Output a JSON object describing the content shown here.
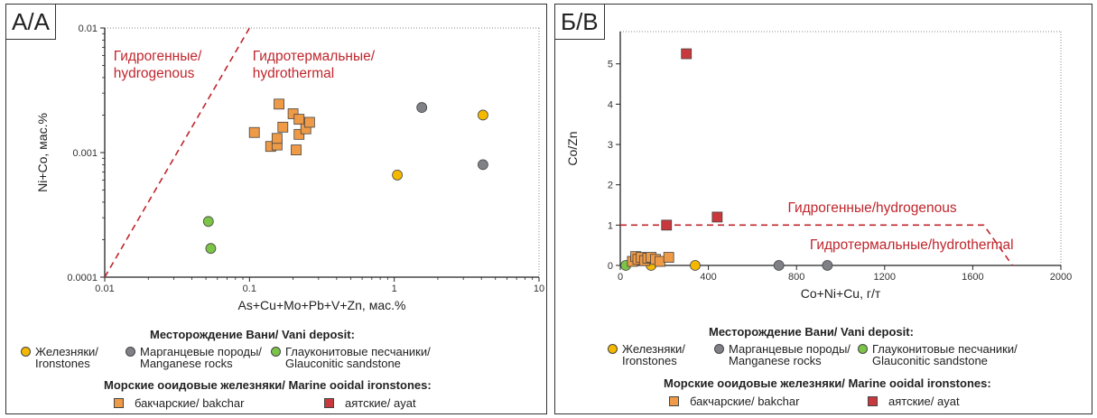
{
  "colors": {
    "ironstones": "#f5b800",
    "manganese": "#7f8186",
    "glauconitic": "#7cc448",
    "bakchar": "#ef9a47",
    "ayat": "#c8383d",
    "region": "#c0262d"
  },
  "chart_data": [
    {
      "type": "scatter",
      "panel_label": "А/А",
      "title": "",
      "xlabel": "As+Cu+Mo+Pb+V+Zn, мас.%",
      "ylabel": "Ni+Co, мас.%",
      "x_scale": "log",
      "y_scale": "log",
      "xlim": [
        0.01,
        10
      ],
      "ylim": [
        0.0001,
        0.01
      ],
      "x_ticks": [
        0.01,
        0.1,
        1,
        10
      ],
      "x_tick_labels": [
        "0.01",
        "0.1",
        "1",
        "10"
      ],
      "y_ticks": [
        0.0001,
        0.001,
        0.01
      ],
      "y_tick_labels": [
        "0.0001",
        "0.001",
        "0.01"
      ],
      "grid": false,
      "boundary": {
        "style": "dashed",
        "points": [
          [
            0.01,
            0.0001
          ],
          [
            0.1,
            0.01
          ]
        ]
      },
      "regions": [
        {
          "label1": "Гидрогенные/",
          "label2": "hydrogenous",
          "x": 0.0115,
          "y": 0.0055
        },
        {
          "label1": "Гидротермальные/",
          "label2": "hydrothermal",
          "x": 0.105,
          "y": 0.0055
        }
      ],
      "series": [
        {
          "name": "Железняки/ Ironstones",
          "key": "ironstones",
          "marker": "circle",
          "points": [
            [
              1.05,
              0.00066
            ],
            [
              4.1,
              0.002
            ]
          ]
        },
        {
          "name": "Марганцевые породы/ Manganese rocks",
          "key": "manganese",
          "marker": "circle",
          "points": [
            [
              1.55,
              0.0023
            ],
            [
              4.1,
              0.0008
            ]
          ]
        },
        {
          "name": "Глауконитовые песчаники/ Glauconitic sandstone",
          "key": "glauconitic",
          "marker": "circle",
          "points": [
            [
              0.052,
              0.00028
            ],
            [
              0.054,
              0.00017
            ]
          ]
        },
        {
          "name": "бакчарские/ bakchar",
          "key": "bakchar",
          "marker": "square",
          "points": [
            [
              0.108,
              0.00145
            ],
            [
              0.14,
              0.00112
            ],
            [
              0.155,
              0.00115
            ],
            [
              0.155,
              0.0013
            ],
            [
              0.16,
              0.00245
            ],
            [
              0.17,
              0.0016
            ],
            [
              0.2,
              0.00205
            ],
            [
              0.21,
              0.00105
            ],
            [
              0.22,
              0.00185
            ],
            [
              0.22,
              0.0014
            ],
            [
              0.245,
              0.00155
            ],
            [
              0.26,
              0.00175
            ]
          ]
        }
      ]
    },
    {
      "type": "scatter",
      "panel_label": "Б/В",
      "title": "",
      "xlabel": "Co+Ni+Cu, г/т",
      "ylabel": "Co/Zn",
      "xlim": [
        0,
        2000
      ],
      "ylim": [
        0,
        5.8
      ],
      "x_ticks": [
        0,
        400,
        800,
        1200,
        1600,
        2000
      ],
      "x_tick_labels": [
        "0",
        "400",
        "800",
        "1200",
        "1600",
        "2000"
      ],
      "y_ticks": [
        0,
        1,
        2,
        3,
        4,
        5
      ],
      "y_tick_labels": [
        "0",
        "1",
        "2",
        "3",
        "4",
        "5"
      ],
      "grid": false,
      "boundary": {
        "style": "dashed",
        "points": [
          [
            0,
            1
          ],
          [
            1650,
            1
          ],
          [
            1780,
            0
          ]
        ]
      },
      "regions": [
        {
          "label1": "Гидрогенные/hydrogenous",
          "x": 760,
          "y": 1.32
        },
        {
          "label1": "Гидротермальные/hydrothermal",
          "x": 860,
          "y": 0.4
        }
      ],
      "series": [
        {
          "name": "Железняки/ Ironstones",
          "key": "ironstones",
          "marker": "circle",
          "points": [
            [
              140,
              0
            ],
            [
              340,
              0
            ]
          ]
        },
        {
          "name": "Марганцевые породы/ Manganese rocks",
          "key": "manganese",
          "marker": "circle",
          "points": [
            [
              720,
              0
            ],
            [
              940,
              0
            ]
          ]
        },
        {
          "name": "Глауконитовые песчаники/ Glauconitic sandstone",
          "key": "glauconitic",
          "marker": "circle",
          "points": [
            [
              25,
              0
            ]
          ]
        },
        {
          "name": "бакчарские/ bakchar",
          "key": "bakchar",
          "marker": "square",
          "points": [
            [
              55,
              0.1
            ],
            [
              70,
              0.22
            ],
            [
              80,
              0.15
            ],
            [
              95,
              0.2
            ],
            [
              110,
              0.12
            ],
            [
              125,
              0.18
            ],
            [
              140,
              0.2
            ],
            [
              160,
              0.15
            ],
            [
              180,
              0.1
            ],
            [
              220,
              0.2
            ]
          ]
        },
        {
          "name": "аятские/ ayat",
          "key": "ayat",
          "marker": "square",
          "points": [
            [
              210,
              1
            ],
            [
              300,
              5.25
            ],
            [
              440,
              1.2
            ]
          ]
        }
      ]
    }
  ],
  "legend": {
    "deposit_title": "Месторождение Вани/ Vani deposit:",
    "marine_title": "Морские ооидовые железняки/ Marine ooidal ironstones:",
    "ironstones_1": "Железняки/",
    "ironstones_2": "Ironstones",
    "manganese_1": "Марганцевые породы/",
    "manganese_2": "Manganese rocks",
    "glauconitic_1": "Глауконитовые песчаники/",
    "glauconitic_2": "Glauconitic sandstone",
    "bakchar": "бакчарские/ bakchar",
    "ayat": "аятские/ ayat"
  }
}
